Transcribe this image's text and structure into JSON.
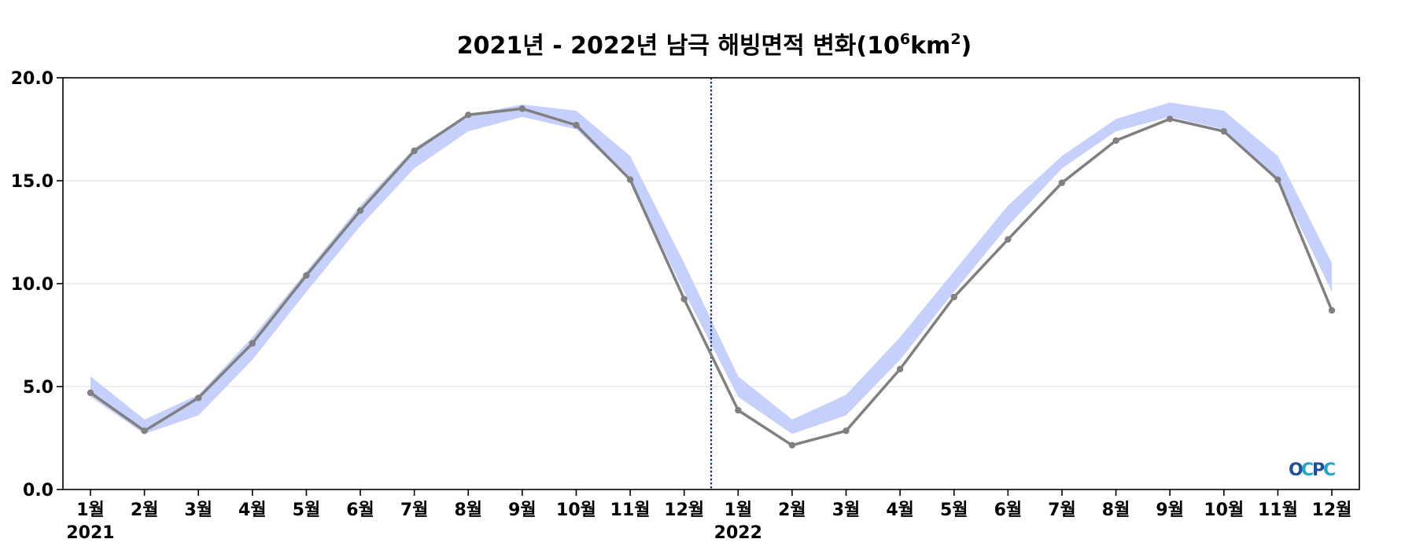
{
  "chart_data": {
    "type": "line",
    "title": {
      "prefix": "2021년 - 2022년 남극 해빙면적 변화(10",
      "sup1": "6",
      "mid": "km",
      "sup2": "2",
      "suffix": ")"
    },
    "categories": [
      "1월",
      "2월",
      "3월",
      "4월",
      "5월",
      "6월",
      "7월",
      "8월",
      "9월",
      "10월",
      "11월",
      "12월",
      "1월",
      "2월",
      "3월",
      "4월",
      "5월",
      "6월",
      "7월",
      "8월",
      "9월",
      "10월",
      "11월",
      "12월"
    ],
    "years": [
      "2021",
      "2022"
    ],
    "ylim": [
      0,
      20
    ],
    "yticks": [
      "0.0",
      "5.0",
      "10.0",
      "15.0",
      "20.0"
    ],
    "series": [
      {
        "values": [
          4.7,
          2.85,
          4.45,
          7.1,
          10.4,
          13.55,
          16.45,
          18.2,
          18.5,
          17.7,
          15.05,
          9.25,
          3.85,
          2.15,
          2.85,
          5.85,
          9.35,
          12.15,
          14.9,
          16.95,
          18.0,
          17.4,
          15.05,
          8.7
        ],
        "color": "#808080"
      }
    ],
    "band": {
      "upper": [
        5.5,
        3.4,
        4.6,
        7.4,
        10.6,
        13.8,
        16.6,
        18.2,
        18.7,
        18.4,
        16.2,
        11.0,
        5.5,
        3.4,
        4.6,
        7.4,
        10.6,
        13.8,
        16.2,
        18.0,
        18.8,
        18.4,
        16.2,
        11.0
      ],
      "lower": [
        4.5,
        2.7,
        3.6,
        6.3,
        9.6,
        12.8,
        15.6,
        17.4,
        18.1,
        17.5,
        15.0,
        9.6,
        4.5,
        2.7,
        3.6,
        6.3,
        9.6,
        12.8,
        15.6,
        17.4,
        18.1,
        17.5,
        15.0,
        9.6
      ],
      "color": "#c6d0fc"
    },
    "divider_color": "#1f3070",
    "grid": true,
    "logo": [
      "O",
      "C",
      "P",
      "C"
    ]
  }
}
